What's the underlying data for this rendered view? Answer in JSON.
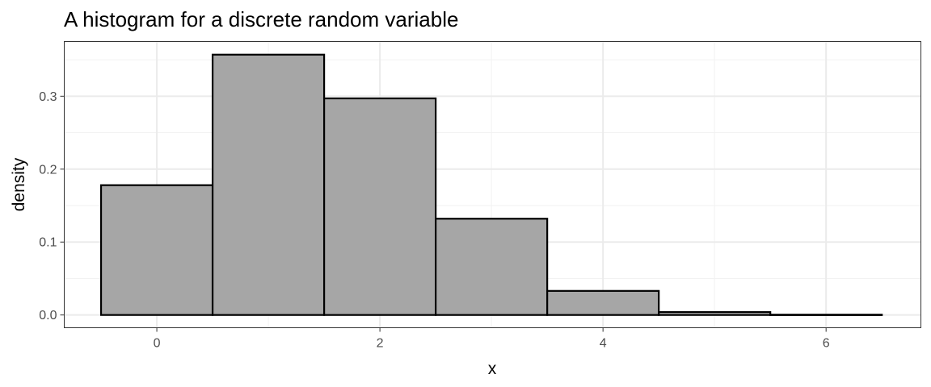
{
  "chart_data": {
    "type": "bar",
    "title": "A histogram for a discrete random variable",
    "xlabel": "x",
    "ylabel": "density",
    "x": [
      0,
      1,
      2,
      3,
      4,
      5,
      6
    ],
    "values": [
      0.178,
      0.357,
      0.297,
      0.132,
      0.033,
      0.004,
      0.0004
    ],
    "bin_width": 1,
    "xlim": [
      -0.83,
      6.85
    ],
    "ylim": [
      -0.0175,
      0.375
    ],
    "x_ticks": [
      0,
      2,
      4,
      6
    ],
    "x_tick_labels": [
      "0",
      "2",
      "4",
      "6"
    ],
    "y_ticks": [
      0.0,
      0.1,
      0.2,
      0.3
    ],
    "y_tick_labels": [
      "0.0",
      "0.1",
      "0.2",
      "0.3"
    ],
    "x_minor_ticks": [
      1,
      3,
      5
    ],
    "y_minor_ticks": [
      0.05,
      0.15,
      0.25,
      0.35
    ],
    "grid": true,
    "legend": "none",
    "colors": {
      "bar_fill": "#a6a6a6",
      "bar_stroke": "#000000",
      "grid_major": "#ebebeb",
      "grid_minor": "#f2f2f2",
      "panel_border": "#333333",
      "tick_text": "#4d4d4d"
    }
  }
}
